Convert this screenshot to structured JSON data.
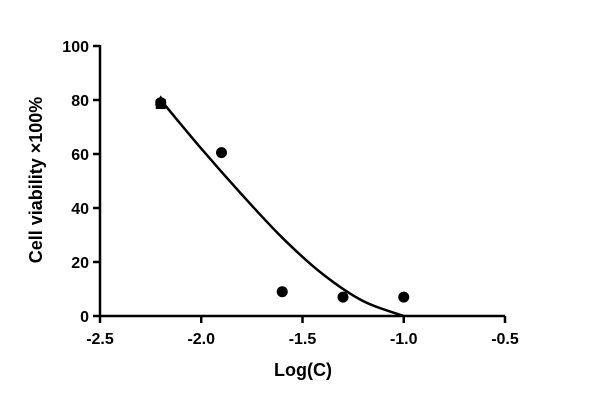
{
  "chart_data": {
    "type": "scatter",
    "title": "",
    "xlabel": "Log(C)",
    "ylabel": "Cell viability  ×100%",
    "xlim": [
      -2.5,
      -0.5
    ],
    "ylim": [
      0,
      100
    ],
    "x_ticks": [
      -2.5,
      -2.0,
      -1.5,
      -1.0,
      -0.5
    ],
    "x_tick_labels": [
      "-2.5",
      "-2.0",
      "-1.5",
      "-1.0",
      "-0.5"
    ],
    "y_ticks": [
      0,
      20,
      40,
      60,
      80,
      100
    ],
    "y_tick_labels": [
      "0",
      "20",
      "40",
      "60",
      "80",
      "100"
    ],
    "grid": false,
    "legend": "none",
    "series": [
      {
        "marker": "circle",
        "x": [
          -2.2,
          -1.9,
          -1.6,
          -1.3,
          -1.0
        ],
        "y": [
          79,
          60.5,
          9,
          7,
          7
        ],
        "extra_markers": [
          {
            "marker": "square",
            "x": -2.2,
            "y": 78.5
          },
          {
            "marker": "triangle",
            "x": -2.2,
            "y": 79.5
          }
        ]
      }
    ],
    "fit_curve": {
      "x": [
        -2.2,
        -2.0,
        -1.8,
        -1.6,
        -1.4,
        -1.2,
        -1.0
      ],
      "y": [
        80,
        62,
        45,
        29,
        15.5,
        5.5,
        0
      ]
    }
  }
}
